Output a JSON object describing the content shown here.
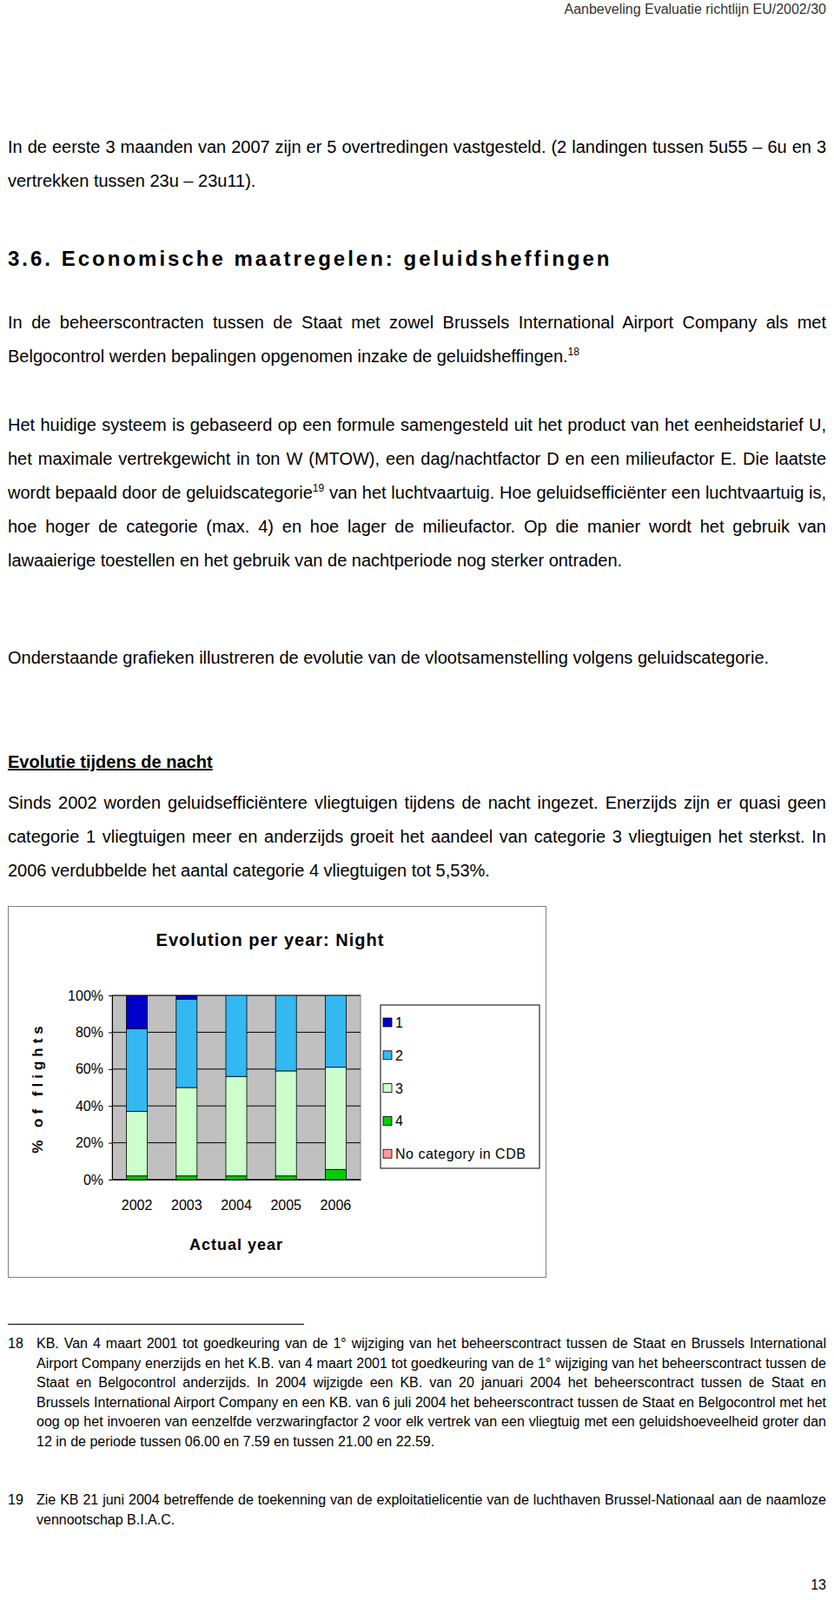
{
  "header": {
    "title": "Aanbeveling Evaluatie richtlijn EU/2002/30"
  },
  "paragraphs": [
    {
      "runs": [
        {
          "text": "In de eerste 3 maanden van 2007 zijn er 5 overtredingen vastgesteld. (2 landingen tussen 5u55 – 6u en 3 vertrekken tussen 23u – 23u11)."
        }
      ]
    },
    {
      "runs": [
        {
          "text": "In de beheerscontracten tussen de Staat met zowel Brussels International Airport Company als met Belgocontrol werden bepalingen opgenomen inzake de geluidsheffingen."
        },
        {
          "sup": "18"
        }
      ]
    },
    {
      "runs": [
        {
          "text": "Het huidige systeem is gebaseerd op een formule samengesteld uit het product van het eenheidstarief U, het maximale vertrekgewicht in ton W (MTOW), een dag/nachtfactor D en een milieufactor E. Die laatste wordt bepaald door de geluidscategorie"
        },
        {
          "sup": "19"
        },
        {
          "text": " van het luchtvaartuig. Hoe geluidsefficiënter een luchtvaartuig is, hoe hoger de categorie (max. 4) en hoe lager de milieufactor. Op die manier wordt het gebruik van lawaaierige toestellen en het gebruik van de nachtperiode nog sterker ontraden."
        }
      ]
    },
    {
      "runs": [
        {
          "text": "Onderstaande grafieken illustreren de evolutie van de vlootsamenstelling volgens geluidscategorie."
        }
      ]
    },
    {
      "runs": [
        {
          "text": "Sinds 2002 worden geluidsefficiëntere vliegtuigen tijdens de nacht ingezet. Enerzijds zijn er quasi geen categorie 1 vliegtuigen meer en anderzijds groeit het aandeel van categorie 3 vliegtuigen het sterkst. In 2006 verdubbelde het aantal categorie 4 vliegtuigen tot 5,53%."
        }
      ]
    }
  ],
  "section_heading": "3.6. Economische maatregelen: geluidsheffingen",
  "subheading": "Evolutie tijdens de nacht",
  "chart_data": {
    "type": "bar",
    "stacked": true,
    "title": "Evolution per year: Night",
    "x_label": "Actual year",
    "y_label": "% of flights",
    "categories": [
      "2002",
      "2003",
      "2004",
      "2005",
      "2006"
    ],
    "series": [
      {
        "name": "1",
        "color": "#0000cc",
        "values": [
          18,
          2,
          0,
          0,
          0
        ]
      },
      {
        "name": "2",
        "color": "#33b8f2",
        "values": [
          45,
          48,
          44,
          41,
          39
        ]
      },
      {
        "name": "3",
        "color": "#ccffcc",
        "values": [
          35,
          48,
          54,
          57,
          55.47
        ]
      },
      {
        "name": "4",
        "color": "#00cc00",
        "values": [
          2,
          2,
          2,
          2,
          5.53
        ]
      },
      {
        "name": "No category in CDB",
        "color": "#ff9999",
        "values": [
          0,
          0,
          0,
          0,
          0
        ]
      }
    ],
    "ylim": [
      0,
      100
    ],
    "yticks": [
      {
        "value": 0,
        "label": "0%"
      },
      {
        "value": 20,
        "label": "20%"
      },
      {
        "value": 40,
        "label": "40%"
      },
      {
        "value": 60,
        "label": "60%"
      },
      {
        "value": 80,
        "label": "80%"
      },
      {
        "value": 100,
        "label": "100%"
      }
    ],
    "grid": true,
    "legend": "right"
  },
  "footnotes": [
    {
      "marker": "18",
      "text": "KB. Van 4 maart 2001 tot goedkeuring van de 1° wijziging van het beheerscontract tussen de Staat en Brussels International Airport Company enerzijds en het K.B. van 4 maart 2001 tot goedkeuring van de 1° wijziging van het beheerscontract tussen de Staat en Belgocontrol anderzijds. In 2004 wijzigde een KB. van 20 januari 2004 het beheerscontract tussen de Staat en Brussels International Airport Company en een KB. van 6 juli 2004 het beheerscontract tussen de Staat en Belgocontrol met het oog op het invoeren van eenzelfde verzwaringfactor 2 voor elk vertrek van een vliegtuig met een geluidshoeveelheid groter dan 12 in de periode tussen 06.00 en 7.59 en tussen 21.00 en 22.59."
    },
    {
      "marker": "19",
      "text": "Zie KB 21 juni 2004 betreffende de toekenning van de exploitatielicentie van de luchthaven Brussel-Nationaal aan de naamloze vennootschap B.I.A.C."
    }
  ],
  "page_number": "13"
}
